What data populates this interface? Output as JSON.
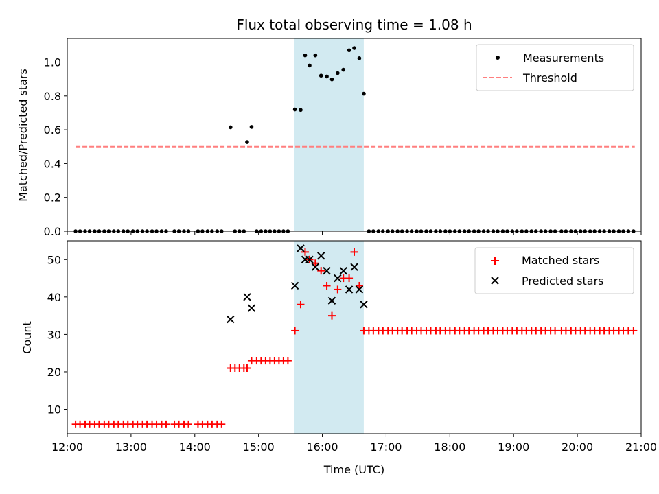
{
  "chart_data": [
    {
      "type": "scatter",
      "title": "Flux total observing time = 1.08 h",
      "xlabel": "",
      "ylabel": "Matched/Predicted stars",
      "xlim": [
        12.0,
        21.0
      ],
      "ylim": [
        0.0,
        1.14
      ],
      "yticks": [
        0.0,
        0.2,
        0.4,
        0.6,
        0.8,
        1.0
      ],
      "ytick_labels": [
        "0.0",
        "0.2",
        "0.4",
        "0.6",
        "0.8",
        "1.0"
      ],
      "xticks": [
        12,
        13,
        14,
        15,
        16,
        17,
        18,
        19,
        20,
        21
      ],
      "shaded_region": {
        "x0": 15.56,
        "x1": 16.65,
        "color": "#add8e6"
      },
      "legend": {
        "position": "upper right",
        "entries": [
          "Measurements",
          "Threshold"
        ]
      },
      "series": [
        {
          "name": "Measurements",
          "marker": "dot",
          "color": "#000000",
          "x": [
            12.13,
            12.2,
            12.28,
            12.35,
            12.43,
            12.5,
            12.58,
            12.65,
            12.73,
            12.8,
            12.88,
            12.95,
            13.03,
            13.1,
            13.18,
            13.25,
            13.33,
            13.4,
            13.48,
            13.55,
            13.68,
            13.75,
            13.83,
            13.9,
            14.05,
            14.12,
            14.2,
            14.27,
            14.35,
            14.42,
            14.56,
            14.63,
            14.7,
            14.77,
            14.82,
            14.89,
            14.97,
            15.04,
            15.11,
            15.18,
            15.25,
            15.32,
            15.39,
            15.46,
            15.57,
            15.66,
            15.73,
            15.8,
            15.89,
            15.98,
            16.07,
            16.15,
            16.24,
            16.33,
            16.42,
            16.5,
            16.58,
            16.65,
            16.73,
            16.8,
            16.88,
            16.95,
            17.03,
            17.1,
            17.18,
            17.25,
            17.33,
            17.4,
            17.48,
            17.55,
            17.63,
            17.7,
            17.78,
            17.85,
            17.93,
            18.0,
            18.08,
            18.15,
            18.23,
            18.3,
            18.38,
            18.45,
            18.53,
            18.6,
            18.68,
            18.75,
            18.83,
            18.9,
            18.98,
            19.05,
            19.13,
            19.2,
            19.28,
            19.35,
            19.43,
            19.5,
            19.58,
            19.65,
            19.75,
            19.82,
            19.9,
            19.97,
            20.05,
            20.12,
            20.2,
            20.27,
            20.35,
            20.42,
            20.5,
            20.57,
            20.65,
            20.72,
            20.8,
            20.88
          ],
          "y": [
            0,
            0,
            0,
            0,
            0,
            0,
            0,
            0,
            0,
            0,
            0,
            0,
            0,
            0,
            0,
            0,
            0,
            0,
            0,
            0,
            0,
            0,
            0,
            0,
            0,
            0,
            0,
            0,
            0,
            0,
            0.615,
            0,
            0,
            0,
            0.527,
            0.617,
            0,
            0,
            0,
            0,
            0,
            0,
            0,
            0,
            0.72,
            0.717,
            1.04,
            0.98,
            1.04,
            0.92,
            0.915,
            0.898,
            0.935,
            0.955,
            1.07,
            1.083,
            1.023,
            0.813,
            0,
            0,
            0,
            0,
            0,
            0,
            0,
            0,
            0,
            0,
            0,
            0,
            0,
            0,
            0,
            0,
            0,
            0,
            0,
            0,
            0,
            0,
            0,
            0,
            0,
            0,
            0,
            0,
            0,
            0,
            0,
            0,
            0,
            0,
            0,
            0,
            0,
            0,
            0,
            0,
            0,
            0,
            0,
            0,
            0,
            0,
            0,
            0,
            0,
            0,
            0,
            0,
            0,
            0,
            0,
            0
          ]
        },
        {
          "name": "Threshold",
          "marker": "dashed-line",
          "color": "#ff7f7f",
          "x": [
            12.13,
            20.9
          ],
          "y": [
            0.5,
            0.5
          ]
        }
      ]
    },
    {
      "type": "scatter",
      "title": "",
      "xlabel": "Time (UTC)",
      "ylabel": "Count",
      "xlim": [
        12.0,
        21.0
      ],
      "ylim": [
        3.5,
        55.0
      ],
      "yticks": [
        10,
        20,
        30,
        40,
        50
      ],
      "ytick_labels": [
        "10",
        "20",
        "30",
        "40",
        "50"
      ],
      "xticks": [
        12,
        13,
        14,
        15,
        16,
        17,
        18,
        19,
        20,
        21
      ],
      "xtick_labels": [
        "12:00",
        "13:00",
        "14:00",
        "15:00",
        "16:00",
        "17:00",
        "18:00",
        "19:00",
        "20:00",
        "21:00"
      ],
      "shaded_region": {
        "x0": 15.56,
        "x1": 16.65,
        "color": "#add8e6"
      },
      "legend": {
        "position": "upper right",
        "entries": [
          "Matched stars",
          "Predicted stars"
        ]
      },
      "series": [
        {
          "name": "Matched stars",
          "marker": "plus",
          "color": "#ff0000",
          "x": [
            12.13,
            12.2,
            12.28,
            12.35,
            12.43,
            12.5,
            12.58,
            12.65,
            12.73,
            12.8,
            12.88,
            12.95,
            13.03,
            13.1,
            13.18,
            13.25,
            13.33,
            13.4,
            13.48,
            13.55,
            13.68,
            13.75,
            13.83,
            13.9,
            14.05,
            14.12,
            14.2,
            14.27,
            14.35,
            14.42,
            14.56,
            14.63,
            14.7,
            14.77,
            14.82,
            14.89,
            14.97,
            15.04,
            15.11,
            15.18,
            15.25,
            15.32,
            15.39,
            15.46,
            15.57,
            15.66,
            15.73,
            15.8,
            15.89,
            15.98,
            16.07,
            16.15,
            16.24,
            16.33,
            16.42,
            16.5,
            16.58,
            16.65,
            16.73,
            16.8,
            16.88,
            16.95,
            17.03,
            17.1,
            17.18,
            17.25,
            17.33,
            17.4,
            17.48,
            17.55,
            17.63,
            17.7,
            17.78,
            17.85,
            17.93,
            18.0,
            18.08,
            18.15,
            18.23,
            18.3,
            18.38,
            18.45,
            18.53,
            18.6,
            18.68,
            18.75,
            18.83,
            18.9,
            18.98,
            19.05,
            19.13,
            19.2,
            19.28,
            19.35,
            19.43,
            19.5,
            19.58,
            19.65,
            19.75,
            19.82,
            19.9,
            19.97,
            20.05,
            20.12,
            20.2,
            20.27,
            20.35,
            20.42,
            20.5,
            20.57,
            20.65,
            20.72,
            20.8,
            20.88
          ],
          "y": [
            6,
            6,
            6,
            6,
            6,
            6,
            6,
            6,
            6,
            6,
            6,
            6,
            6,
            6,
            6,
            6,
            6,
            6,
            6,
            6,
            6,
            6,
            6,
            6,
            6,
            6,
            6,
            6,
            6,
            6,
            21,
            21,
            21,
            21,
            21,
            23,
            23,
            23,
            23,
            23,
            23,
            23,
            23,
            23,
            31,
            38,
            52,
            50,
            49,
            47,
            43,
            35,
            42,
            45,
            45,
            52,
            43,
            31,
            31,
            31,
            31,
            31,
            31,
            31,
            31,
            31,
            31,
            31,
            31,
            31,
            31,
            31,
            31,
            31,
            31,
            31,
            31,
            31,
            31,
            31,
            31,
            31,
            31,
            31,
            31,
            31,
            31,
            31,
            31,
            31,
            31,
            31,
            31,
            31,
            31,
            31,
            31,
            31,
            31,
            31,
            31,
            31,
            31,
            31,
            31,
            31,
            31,
            31,
            31,
            31,
            31,
            31,
            31,
            31
          ]
        },
        {
          "name": "Predicted stars",
          "marker": "x",
          "color": "#000000",
          "x": [
            14.56,
            14.82,
            14.89,
            15.57,
            15.66,
            15.73,
            15.8,
            15.89,
            15.98,
            16.07,
            16.15,
            16.24,
            16.33,
            16.42,
            16.5,
            16.58,
            16.65
          ],
          "y": [
            34,
            40,
            37,
            43,
            53,
            50,
            50,
            48,
            51,
            47,
            39,
            45,
            47,
            42,
            48,
            42,
            38
          ]
        }
      ]
    }
  ]
}
